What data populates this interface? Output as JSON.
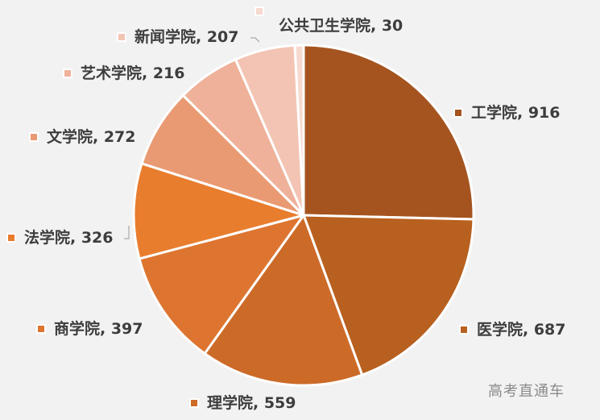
{
  "chart_data": {
    "type": "pie",
    "title": "",
    "categories": [
      "工学院",
      "医学院",
      "理学院",
      "商学院",
      "法学院",
      "文学院",
      "艺术学院",
      "新闻学院",
      "公共卫生学院"
    ],
    "values": [
      916,
      687,
      559,
      397,
      326,
      272,
      216,
      207,
      30
    ],
    "colors": [
      "#a5541f",
      "#b8601f",
      "#cc6a28",
      "#dd7530",
      "#e87d2e",
      "#e99a72",
      "#efb199",
      "#f3c4b3",
      "#f6d9cf"
    ],
    "start_angle_deg": 0,
    "direction": "clockwise",
    "data_labels": "category, value",
    "legend": "none (labels outside slices)"
  },
  "labels": [
    {
      "text": "工学院, 916",
      "color": "#a5541f"
    },
    {
      "text": "医学院, 687",
      "color": "#b8601f"
    },
    {
      "text": "理学院, 559",
      "color": "#cc6a28"
    },
    {
      "text": "商学院, 397",
      "color": "#dd7530"
    },
    {
      "text": "法学院, 326",
      "color": "#e87d2e"
    },
    {
      "text": "文学院, 272",
      "color": "#e99a72"
    },
    {
      "text": "艺术学院, 216",
      "color": "#efb199"
    },
    {
      "text": "新闻学院, 207",
      "color": "#f3c4b3"
    },
    {
      "text": "公共卫生学院, 30",
      "color": "#f6d9cf"
    }
  ],
  "watermark": "高考直通车"
}
